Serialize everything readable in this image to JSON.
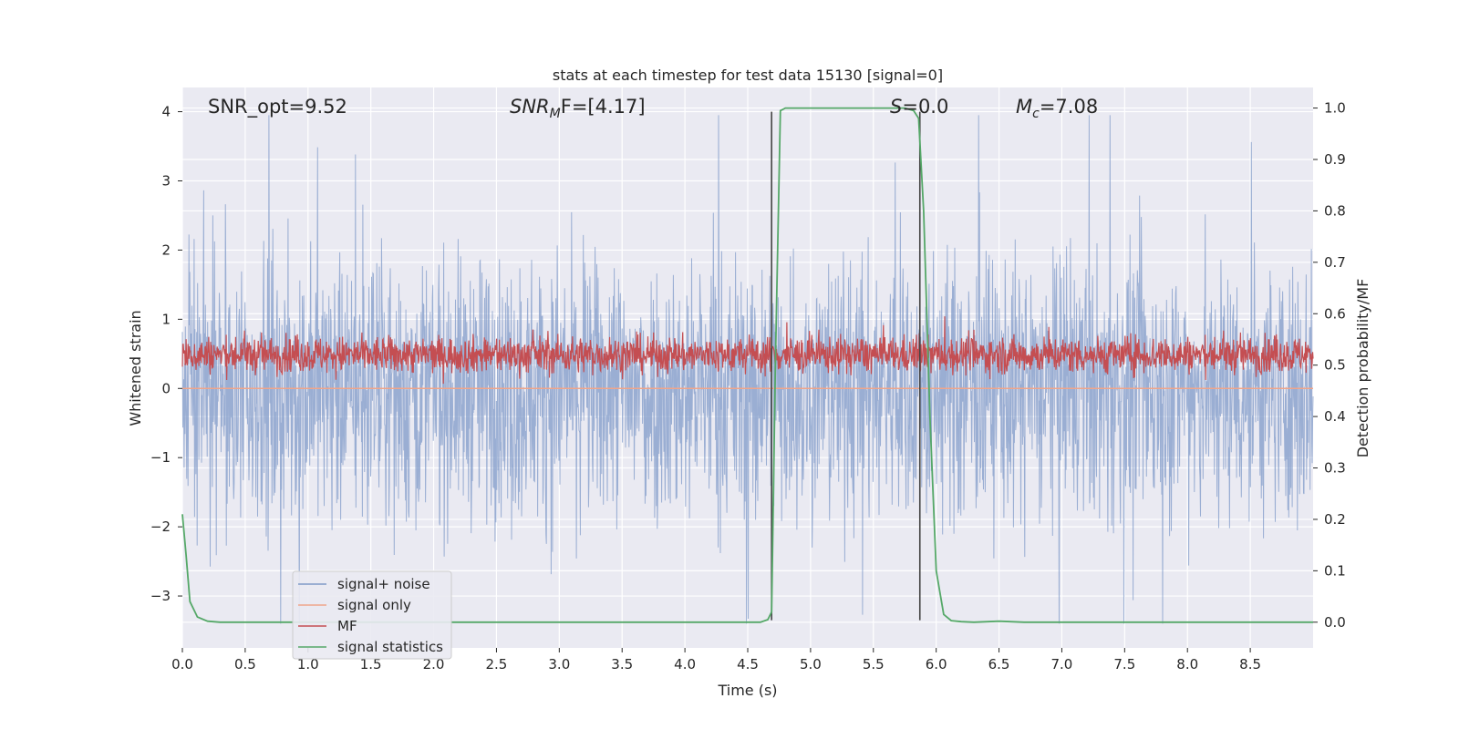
{
  "chart_data": {
    "type": "line",
    "title": "stats at each timestep for test data 15130 [signal=0]",
    "xlabel": "Time (s)",
    "ylabel_left": "Whitened strain",
    "ylabel_right": "Detection probability/MF",
    "xlim": [
      0.0,
      9.0
    ],
    "ylim_left": [
      -3.75,
      4.35
    ],
    "ylim_right": [
      -0.05,
      1.04
    ],
    "x_ticks": [
      "0.0",
      "0.5",
      "1.0",
      "1.5",
      "2.0",
      "2.5",
      "3.0",
      "3.5",
      "4.0",
      "4.5",
      "5.0",
      "5.5",
      "6.0",
      "6.5",
      "7.0",
      "7.5",
      "8.0",
      "8.5"
    ],
    "y_ticks_left": [
      "−3",
      "−2",
      "−1",
      "0",
      "1",
      "2",
      "3",
      "4"
    ],
    "y_ticks_right": [
      "0.0",
      "0.1",
      "0.2",
      "0.3",
      "0.4",
      "0.5",
      "0.6",
      "0.7",
      "0.8",
      "0.9",
      "1.0"
    ],
    "grid": true,
    "legend_position": "lower-left",
    "annotations": {
      "snr_opt": "SNR_opt=9.52",
      "snr_mf_base": "SNR",
      "snr_mf_sub": "M",
      "snr_mf_rest": "F=[4.17]",
      "s_label_it": "S",
      "s_label_rest": "=0.0",
      "mc_base": "M",
      "mc_sub": "c",
      "mc_rest": "=7.08"
    },
    "vertical_lines": [
      {
        "x": 4.69,
        "y_top": 4.0,
        "y_bottom": -3.35
      },
      {
        "x": 5.87,
        "y_top": 4.0,
        "y_bottom": -3.35
      }
    ],
    "series": [
      {
        "name": "signal+ noise",
        "axis": "left",
        "color": "#7f9ac8",
        "description": "noise, approx range -3.4 to 3.9, centered 0"
      },
      {
        "name": "signal only",
        "axis": "left",
        "color": "#f0a58a",
        "values_constant": 0.0
      },
      {
        "name": "MF",
        "axis": "right",
        "color": "#c44e52",
        "description": "noise, approx range 0.46 to 0.59, centered 0.52"
      },
      {
        "name": "signal statistics",
        "axis": "right",
        "color": "#55a868",
        "x": [
          0.0,
          0.03,
          0.06,
          0.12,
          0.2,
          0.3,
          0.5,
          1.0,
          2.0,
          3.0,
          4.0,
          4.6,
          4.66,
          4.69,
          4.72,
          4.76,
          4.8,
          4.9,
          5.0,
          5.5,
          5.75,
          5.82,
          5.86,
          5.9,
          5.95,
          6.0,
          6.06,
          6.12,
          6.2,
          6.3,
          6.5,
          6.7,
          7.0,
          8.0,
          9.0
        ],
        "values": [
          0.21,
          0.13,
          0.04,
          0.01,
          0.002,
          0.0,
          0.0,
          0.0,
          0.0,
          0.0,
          0.0,
          0.0,
          0.005,
          0.02,
          0.5,
          0.995,
          1.0,
          1.0,
          1.0,
          1.0,
          1.0,
          0.995,
          0.98,
          0.8,
          0.4,
          0.1,
          0.015,
          0.003,
          0.001,
          0.0,
          0.002,
          0.0,
          0.0,
          0.0,
          0.0
        ]
      }
    ]
  }
}
